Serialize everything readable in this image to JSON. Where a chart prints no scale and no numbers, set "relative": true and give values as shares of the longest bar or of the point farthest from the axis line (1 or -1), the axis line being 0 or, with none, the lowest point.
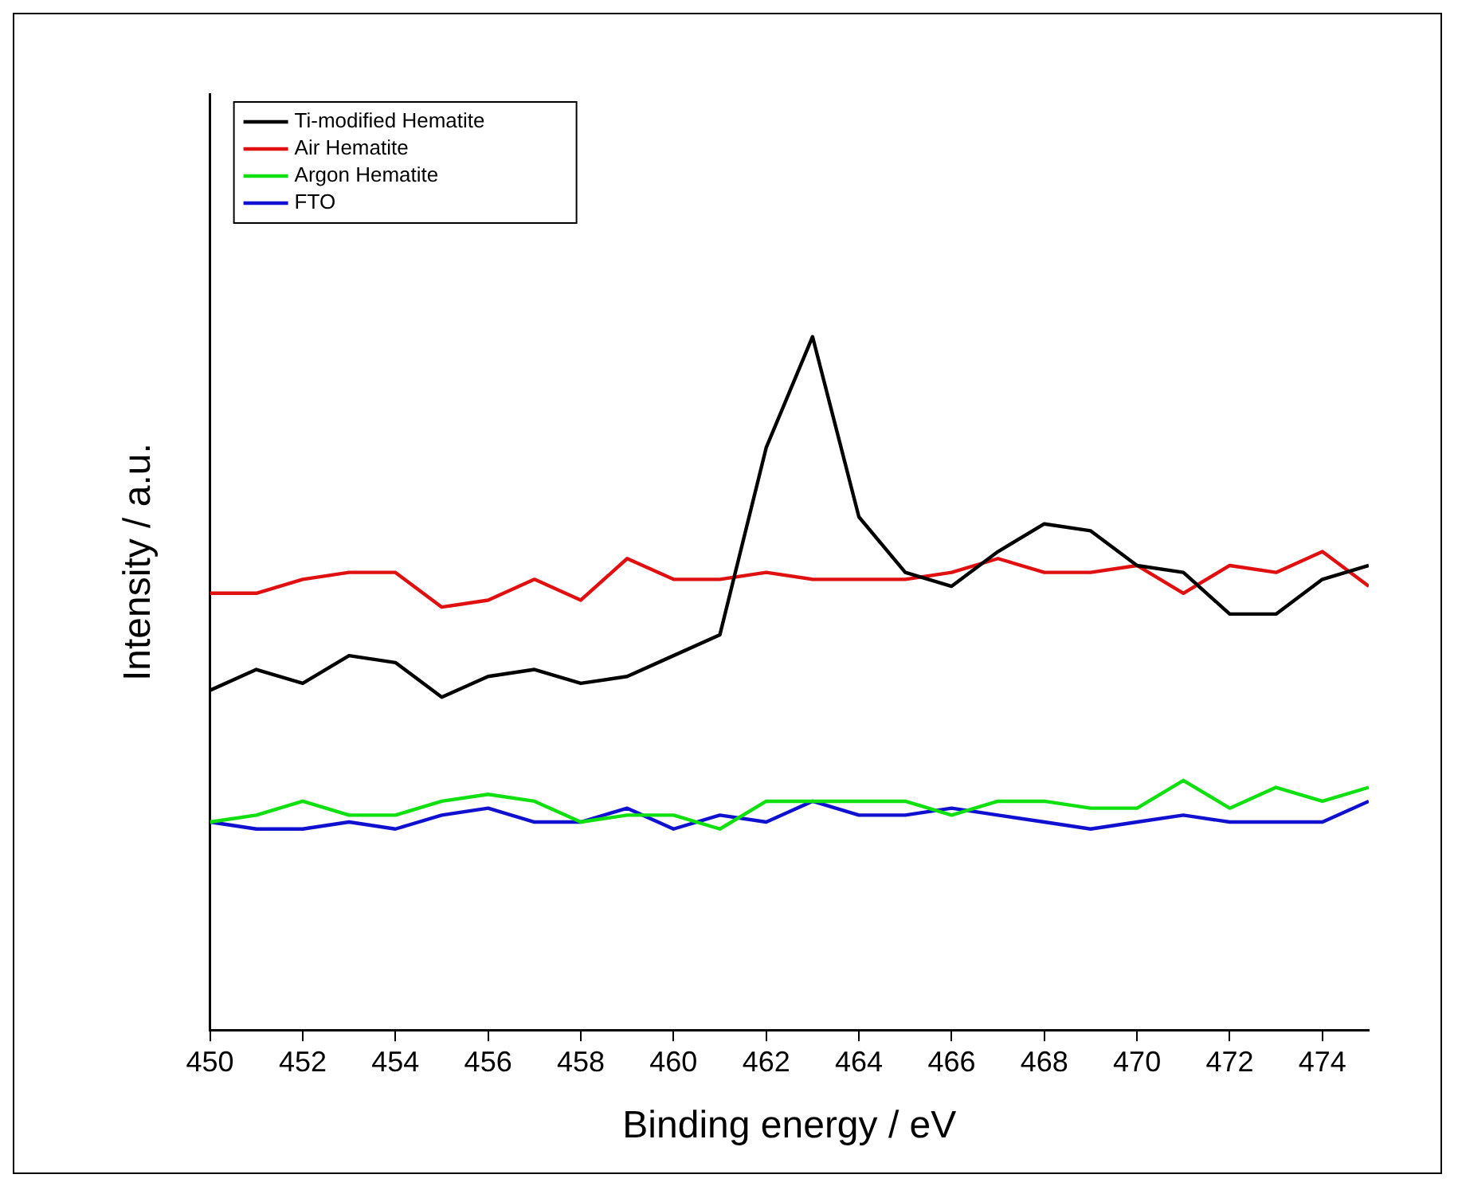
{
  "chart_data": {
    "type": "line",
    "xlabel": "Binding energy / eV",
    "ylabel": "Intensity / a.u.",
    "relative": true,
    "x": [
      450,
      451,
      452,
      453,
      454,
      455,
      456,
      457,
      458,
      459,
      460,
      461,
      462,
      463,
      464,
      465,
      466,
      467,
      468,
      469,
      470,
      471,
      472,
      473,
      474,
      475
    ],
    "xlim": [
      450,
      475
    ],
    "xticks": [
      450,
      452,
      454,
      456,
      458,
      460,
      462,
      464,
      466,
      468,
      470,
      472,
      474
    ],
    "grid": false,
    "legend": "top left",
    "marker": "none",
    "line_style": "solid",
    "series": [
      {
        "name": "Ti-modified Hematite",
        "color": "#000000",
        "values": [
          0.49,
          0.52,
          0.5,
          0.54,
          0.53,
          0.48,
          0.51,
          0.52,
          0.5,
          0.51,
          0.54,
          0.57,
          0.84,
          1,
          0.74,
          0.66,
          0.64,
          0.69,
          0.73,
          0.72,
          0.67,
          0.66,
          0.6,
          0.6,
          0.65,
          0.67
        ]
      },
      {
        "name": "Air Hematite",
        "color": "#e01010",
        "values": [
          0.63,
          0.63,
          0.65,
          0.66,
          0.66,
          0.61,
          0.62,
          0.65,
          0.62,
          0.68,
          0.65,
          0.65,
          0.66,
          0.65,
          0.65,
          0.65,
          0.66,
          0.68,
          0.66,
          0.66,
          0.67,
          0.63,
          0.67,
          0.66,
          0.69,
          0.64
        ]
      },
      {
        "name": "Argon Hematite",
        "color": "#10e010",
        "values": [
          0.3,
          0.31,
          0.33,
          0.31,
          0.31,
          0.33,
          0.34,
          0.33,
          0.3,
          0.31,
          0.31,
          0.29,
          0.33,
          0.33,
          0.33,
          0.33,
          0.31,
          0.33,
          0.33,
          0.32,
          0.32,
          0.36,
          0.32,
          0.35,
          0.33,
          0.35
        ]
      },
      {
        "name": "FTO",
        "color": "#1010d0",
        "values": [
          0.3,
          0.29,
          0.29,
          0.3,
          0.29,
          0.31,
          0.32,
          0.3,
          0.3,
          0.32,
          0.29,
          0.31,
          0.3,
          0.33,
          0.31,
          0.31,
          0.32,
          0.31,
          0.3,
          0.29,
          0.3,
          0.31,
          0.3,
          0.3,
          0.3,
          0.33
        ]
      }
    ]
  }
}
